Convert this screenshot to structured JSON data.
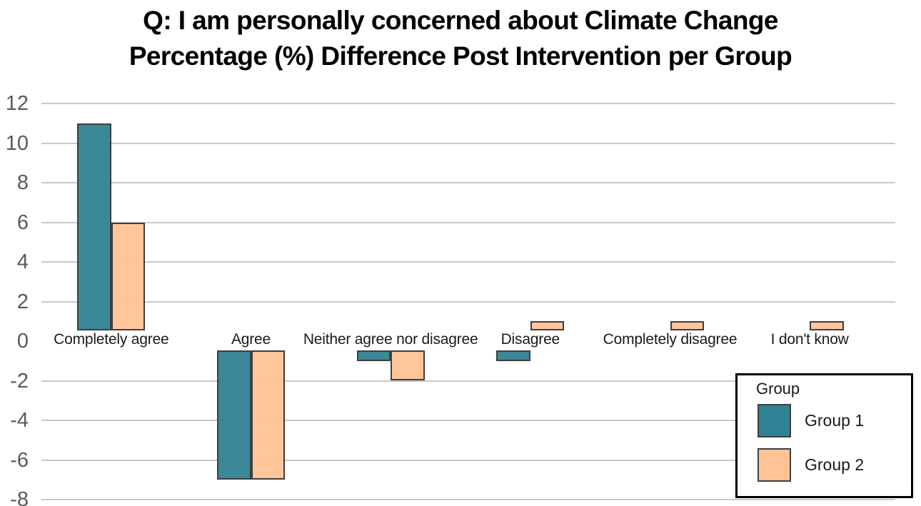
{
  "title": {
    "line1": "Q: I am personally concerned about Climate Change",
    "line2": "Percentage (%) Difference Post Intervention per Group"
  },
  "chart_data": {
    "type": "bar",
    "title": "Q: I am personally concerned about Climate Change — Percentage (%) Difference Post Intervention per Group",
    "categories": [
      "Completely agree",
      "Agree",
      "Neither agree nor disagree",
      "Disagree",
      "Completely disagree",
      "I don't know"
    ],
    "series": [
      {
        "name": "Group 1",
        "color": "#2F8193",
        "values": [
          11,
          -7,
          -1,
          -1,
          0,
          0
        ]
      },
      {
        "name": "Group 2",
        "color": "#FFC396",
        "values": [
          6,
          -7,
          -2,
          1,
          1,
          1
        ]
      }
    ],
    "xlabel": "",
    "ylabel": "",
    "ylim": [
      -8,
      12
    ],
    "yticks": [
      12,
      10,
      8,
      6,
      4,
      2,
      0,
      -2,
      -4,
      -6,
      -8
    ],
    "grid": "horizontal",
    "gridline_color": "#c9c9c9",
    "legend_position": "bottom-right"
  },
  "legend": {
    "title": "Group",
    "items": [
      {
        "label": "Group 1",
        "color": "#2F8193"
      },
      {
        "label": "Group 2",
        "color": "#FFC396"
      }
    ]
  }
}
